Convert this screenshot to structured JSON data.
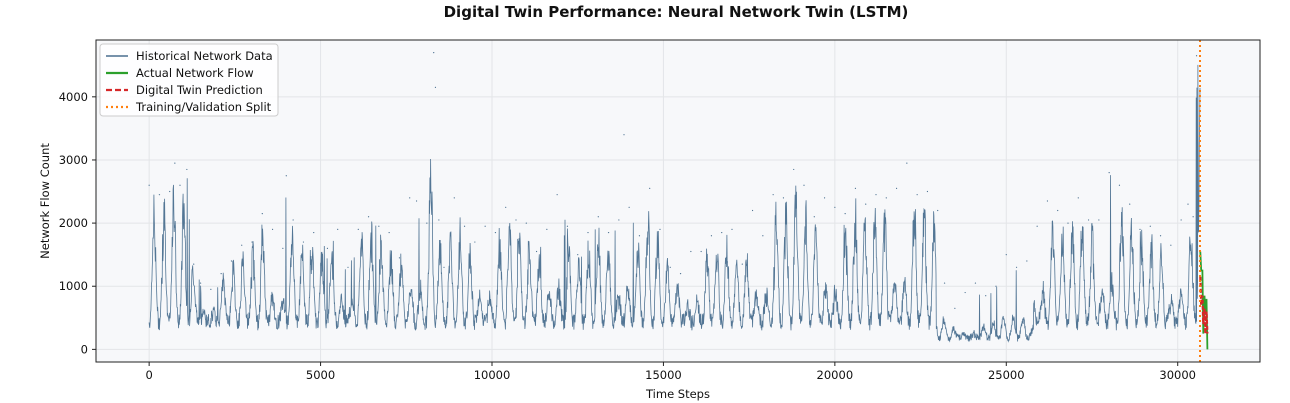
{
  "chart_data": {
    "type": "line",
    "title": "Digital Twin Performance: Neural Network Twin (LSTM)",
    "xlabel": "Time Steps",
    "ylabel": "Network Flow Count",
    "xlim": [
      -1550,
      32400
    ],
    "ylim": [
      -200,
      4900
    ],
    "xticks": [
      0,
      5000,
      10000,
      15000,
      20000,
      25000,
      30000
    ],
    "yticks": [
      0,
      1000,
      2000,
      3000,
      4000
    ],
    "grid": true,
    "legend_position": "top-left",
    "split_x": 30650,
    "colors": {
      "historical": "#4a6f8f",
      "actual": "#2ca02c",
      "prediction": "#d62728",
      "split": "#ff7f0e",
      "plot_bg": "#f7f8fa",
      "grid": "#e3e5e8"
    },
    "series": [
      {
        "name": "Historical Network Data",
        "style": "solid",
        "x": [
          0,
          300,
          600,
          750,
          900,
          1100,
          1300,
          1500,
          1800,
          2100,
          2400,
          2700,
          3000,
          3300,
          3600,
          3900,
          4000,
          4200,
          4500,
          4800,
          5200,
          5500,
          5800,
          6100,
          6400,
          6700,
          7000,
          7300,
          7600,
          7800,
          8100,
          8300,
          8350,
          8450,
          8600,
          8900,
          9200,
          9500,
          9800,
          10100,
          10400,
          10700,
          11000,
          11300,
          11600,
          11900,
          12200,
          12500,
          12800,
          13100,
          13400,
          13700,
          13850,
          14000,
          14300,
          14600,
          14900,
          15200,
          15500,
          15800,
          16100,
          16400,
          16700,
          17000,
          17300,
          17600,
          17900,
          18200,
          18500,
          18800,
          19100,
          19400,
          19700,
          20000,
          20300,
          20600,
          20900,
          21200,
          21500,
          21800,
          22100,
          22400,
          22700,
          23000,
          23200,
          23500,
          23800,
          24100,
          24400,
          24700,
          25000,
          25300,
          25600,
          25900,
          26200,
          26500,
          26800,
          27100,
          27400,
          27700,
          28000,
          28300,
          28600,
          28900,
          29200,
          29500,
          29800,
          30100,
          30300,
          30450,
          30550
        ],
        "values": [
          2600,
          2450,
          2500,
          2950,
          2600,
          2850,
          1350,
          1050,
          950,
          1200,
          1400,
          1650,
          1700,
          2150,
          1900,
          1600,
          2750,
          2050,
          1700,
          1850,
          1600,
          1900,
          1300,
          1900,
          2100,
          1950,
          1850,
          1450,
          2400,
          2350,
          2000,
          4700,
          4150,
          2050,
          1300,
          2400,
          1950,
          1700,
          1950,
          1850,
          2250,
          2050,
          2000,
          1550,
          1900,
          2450,
          1950,
          1500,
          1850,
          2100,
          1850,
          2050,
          3400,
          2250,
          1800,
          2550,
          1900,
          1300,
          1200,
          1550,
          1550,
          1800,
          1850,
          1900,
          1350,
          2200,
          1800,
          2450,
          2400,
          2850,
          2600,
          2100,
          2400,
          2250,
          2150,
          2550,
          2300,
          2450,
          2400,
          2550,
          2950,
          2450,
          2500,
          2200,
          1050,
          650,
          900,
          1050,
          850,
          1000,
          1500,
          1300,
          1400,
          1950,
          2350,
          2200,
          2000,
          2400,
          2050,
          2050,
          2800,
          2600,
          2300,
          1900,
          1950,
          1800,
          1650,
          2050,
          2300,
          2100,
          4650
        ]
      },
      {
        "name": "Actual Network Flow",
        "style": "solid",
        "x": [
          30660,
          30720,
          30780,
          30840
        ],
        "values": [
          1550,
          1250,
          850,
          800
        ]
      },
      {
        "name": "Digital Twin Prediction",
        "style": "dashed",
        "x": [
          30660,
          30720,
          30780,
          30840
        ],
        "values": [
          1150,
          850,
          650,
          600
        ]
      },
      {
        "name": "Training/Validation Split",
        "style": "dotted",
        "x": [
          30650,
          30650
        ],
        "values": [
          -200,
          4900
        ]
      }
    ]
  }
}
